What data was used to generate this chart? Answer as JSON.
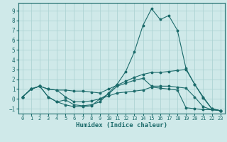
{
  "xlabel": "Humidex (Indice chaleur)",
  "background_color": "#cfe9e9",
  "grid_color": "#aed4d4",
  "line_color": "#1c6b6b",
  "x": [
    0,
    1,
    2,
    3,
    4,
    5,
    6,
    7,
    8,
    9,
    10,
    11,
    12,
    13,
    14,
    15,
    16,
    17,
    18,
    19,
    20,
    21,
    22,
    23
  ],
  "series1": [
    0.2,
    1.0,
    1.3,
    0.2,
    -0.3,
    -0.1,
    -0.6,
    -0.7,
    -0.6,
    -0.3,
    0.6,
    1.5,
    2.8,
    4.8,
    7.5,
    9.2,
    8.1,
    8.5,
    7.0,
    3.1,
    1.5,
    0.2,
    -1.0,
    -1.2
  ],
  "series2": [
    0.2,
    1.0,
    1.3,
    1.0,
    0.9,
    0.9,
    0.8,
    0.8,
    0.7,
    0.6,
    1.0,
    1.4,
    1.8,
    2.2,
    2.5,
    2.7,
    2.7,
    2.8,
    2.9,
    3.0,
    1.5,
    0.1,
    -1.0,
    -1.2
  ],
  "series3": [
    0.2,
    1.0,
    1.3,
    1.0,
    0.9,
    0.2,
    -0.3,
    -0.3,
    -0.2,
    0.0,
    0.5,
    1.3,
    1.6,
    1.9,
    2.1,
    1.3,
    1.3,
    1.3,
    1.2,
    1.1,
    0.2,
    -0.8,
    -1.1,
    -1.2
  ],
  "series4": [
    0.2,
    1.0,
    1.3,
    0.2,
    -0.3,
    -0.6,
    -0.8,
    -0.8,
    -0.7,
    0.0,
    0.3,
    0.6,
    0.7,
    0.8,
    0.9,
    1.2,
    1.1,
    1.0,
    0.9,
    -0.9,
    -1.0,
    -1.1,
    -1.1,
    -1.2
  ],
  "ylim": [
    -1.5,
    9.8
  ],
  "xlim": [
    -0.5,
    23.5
  ],
  "yticks": [
    -1,
    0,
    1,
    2,
    3,
    4,
    5,
    6,
    7,
    8,
    9
  ],
  "xticks": [
    0,
    1,
    2,
    3,
    4,
    5,
    6,
    7,
    8,
    9,
    10,
    11,
    12,
    13,
    14,
    15,
    16,
    17,
    18,
    19,
    20,
    21,
    22,
    23
  ]
}
